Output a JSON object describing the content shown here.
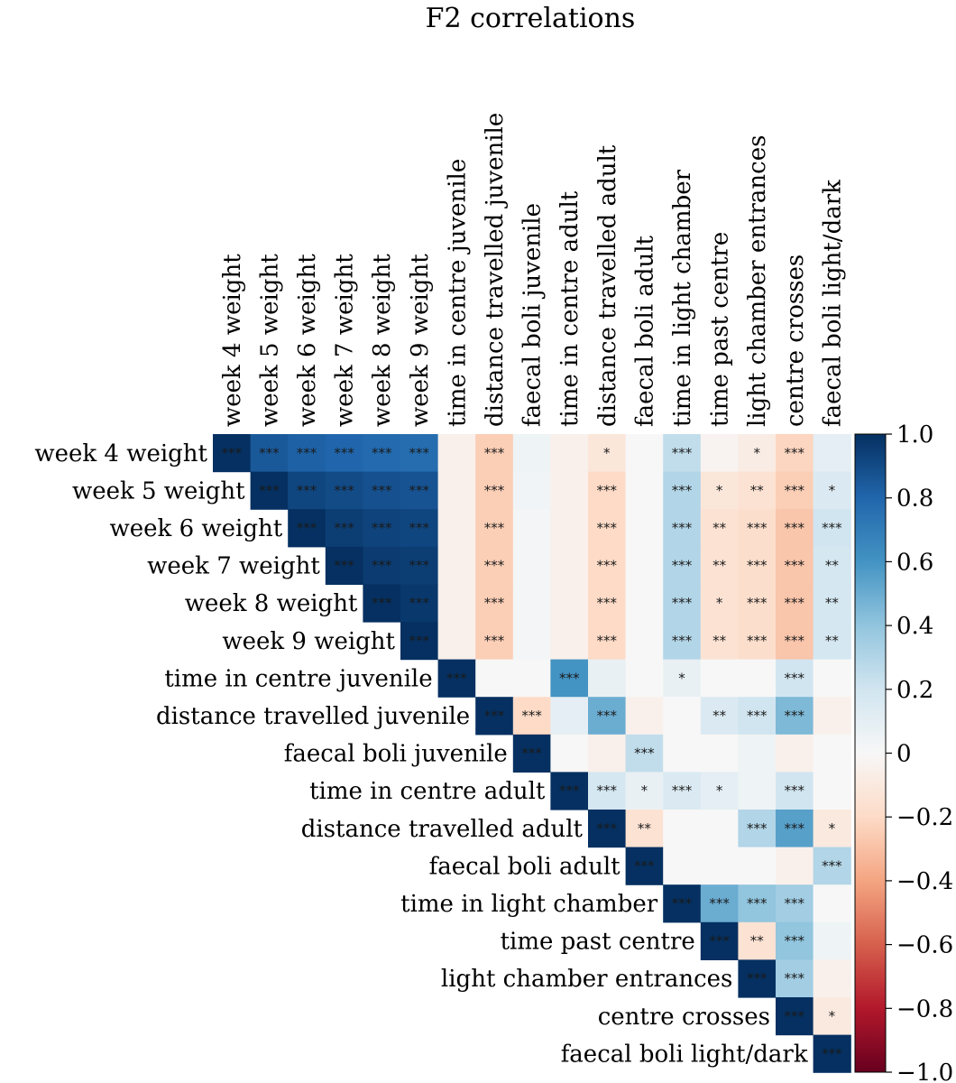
{
  "chart_data": {
    "type": "heatmap",
    "title": "F2 correlations",
    "variables": [
      "week 4 weight",
      "week 5 weight",
      "week 6 weight",
      "week 7 weight",
      "week 8 weight",
      "week 9 weight",
      "time in centre juvenile",
      "distance travelled juvenile",
      "faecal boli juvenile",
      "time in centre adult",
      "distance travelled adult",
      "faecal boli adult",
      "time in light chamber",
      "time past centre",
      "light chamber entrances",
      "centre crosses",
      "faecal boli light/dark"
    ],
    "layout": "upper-triangle",
    "values": [
      [
        1.0,
        0.85,
        0.82,
        0.8,
        0.78,
        0.77,
        -0.05,
        -0.25,
        0.05,
        -0.05,
        -0.12,
        0.0,
        0.25,
        -0.03,
        -0.08,
        -0.22,
        0.1
      ],
      [
        null,
        1.0,
        0.92,
        0.9,
        0.88,
        0.87,
        -0.05,
        -0.25,
        0.03,
        -0.05,
        -0.2,
        0.0,
        0.3,
        -0.12,
        -0.15,
        -0.25,
        0.15
      ],
      [
        null,
        null,
        1.0,
        0.95,
        0.93,
        0.92,
        -0.05,
        -0.25,
        0.02,
        -0.05,
        -0.2,
        0.0,
        0.3,
        -0.15,
        -0.18,
        -0.28,
        0.2
      ],
      [
        null,
        null,
        null,
        1.0,
        0.96,
        0.95,
        -0.05,
        -0.25,
        0.02,
        -0.05,
        -0.2,
        0.0,
        0.3,
        -0.15,
        -0.18,
        -0.28,
        0.18
      ],
      [
        null,
        null,
        null,
        null,
        1.0,
        0.97,
        -0.05,
        -0.25,
        0.02,
        -0.05,
        -0.2,
        0.0,
        0.3,
        -0.15,
        -0.18,
        -0.28,
        0.18
      ],
      [
        null,
        null,
        null,
        null,
        null,
        1.0,
        -0.05,
        -0.25,
        0.02,
        -0.05,
        -0.2,
        0.0,
        0.3,
        -0.15,
        -0.18,
        -0.28,
        0.18
      ],
      [
        null,
        null,
        null,
        null,
        null,
        null,
        1.0,
        0.0,
        0.0,
        0.6,
        0.08,
        0.0,
        0.08,
        0.0,
        0.0,
        0.2,
        0.0
      ],
      [
        null,
        null,
        null,
        null,
        null,
        null,
        null,
        1.0,
        -0.2,
        0.1,
        0.5,
        -0.05,
        0.0,
        0.15,
        0.2,
        0.45,
        -0.05
      ],
      [
        null,
        null,
        null,
        null,
        null,
        null,
        null,
        null,
        1.0,
        0.0,
        -0.05,
        0.25,
        0.0,
        0.0,
        0.05,
        -0.05,
        0.0
      ],
      [
        null,
        null,
        null,
        null,
        null,
        null,
        null,
        null,
        null,
        1.0,
        0.18,
        0.08,
        0.15,
        0.1,
        0.05,
        0.2,
        0.0
      ],
      [
        null,
        null,
        null,
        null,
        null,
        null,
        null,
        null,
        null,
        null,
        1.0,
        -0.15,
        0.0,
        0.0,
        0.3,
        0.55,
        -0.1
      ],
      [
        null,
        null,
        null,
        null,
        null,
        null,
        null,
        null,
        null,
        null,
        null,
        1.0,
        0.0,
        0.0,
        0.0,
        -0.05,
        0.3
      ],
      [
        null,
        null,
        null,
        null,
        null,
        null,
        null,
        null,
        null,
        null,
        null,
        null,
        1.0,
        0.5,
        0.4,
        0.35,
        0.0
      ],
      [
        null,
        null,
        null,
        null,
        null,
        null,
        null,
        null,
        null,
        null,
        null,
        null,
        null,
        1.0,
        -0.15,
        0.4,
        0.05
      ],
      [
        null,
        null,
        null,
        null,
        null,
        null,
        null,
        null,
        null,
        null,
        null,
        null,
        null,
        null,
        1.0,
        0.35,
        -0.05
      ],
      [
        null,
        null,
        null,
        null,
        null,
        null,
        null,
        null,
        null,
        null,
        null,
        null,
        null,
        null,
        null,
        1.0,
        -0.1
      ],
      [
        null,
        null,
        null,
        null,
        null,
        null,
        null,
        null,
        null,
        null,
        null,
        null,
        null,
        null,
        null,
        null,
        1.0
      ]
    ],
    "significance": [
      [
        "***",
        "***",
        "***",
        "***",
        "***",
        "***",
        "",
        "***",
        "",
        "",
        "*",
        "",
        "***",
        "",
        "*",
        "***",
        ""
      ],
      [
        "",
        "***",
        "***",
        "***",
        "***",
        "***",
        "",
        "***",
        "",
        "",
        "***",
        "",
        "***",
        "*",
        "**",
        "***",
        "*"
      ],
      [
        "",
        "",
        "***",
        "***",
        "***",
        "***",
        "",
        "***",
        "",
        "",
        "***",
        "",
        "***",
        "**",
        "***",
        "***",
        "***"
      ],
      [
        "",
        "",
        "",
        "***",
        "***",
        "***",
        "",
        "***",
        "",
        "",
        "***",
        "",
        "***",
        "**",
        "***",
        "***",
        "**"
      ],
      [
        "",
        "",
        "",
        "",
        "***",
        "***",
        "",
        "***",
        "",
        "",
        "***",
        "",
        "***",
        "*",
        "***",
        "***",
        "**"
      ],
      [
        "",
        "",
        "",
        "",
        "",
        "***",
        "",
        "***",
        "",
        "",
        "***",
        "",
        "***",
        "**",
        "***",
        "***",
        "**"
      ],
      [
        "",
        "",
        "",
        "",
        "",
        "",
        "***",
        "",
        "",
        "***",
        "",
        "",
        "*",
        "",
        "",
        "***",
        ""
      ],
      [
        "",
        "",
        "",
        "",
        "",
        "",
        "",
        "***",
        "***",
        "",
        "***",
        "",
        "",
        "**",
        "***",
        "***",
        ""
      ],
      [
        "",
        "",
        "",
        "",
        "",
        "",
        "",
        "",
        "***",
        "",
        "",
        "***",
        "",
        "",
        "",
        "",
        ""
      ],
      [
        "",
        "",
        "",
        "",
        "",
        "",
        "",
        "",
        "",
        "***",
        "***",
        "*",
        "***",
        "*",
        "",
        "***",
        ""
      ],
      [
        "",
        "",
        "",
        "",
        "",
        "",
        "",
        "",
        "",
        "",
        "***",
        "**",
        "",
        "",
        "***",
        "***",
        "*"
      ],
      [
        "",
        "",
        "",
        "",
        "",
        "",
        "",
        "",
        "",
        "",
        "",
        "***",
        "",
        "",
        "",
        "",
        "***"
      ],
      [
        "",
        "",
        "",
        "",
        "",
        "",
        "",
        "",
        "",
        "",
        "",
        "",
        "***",
        "***",
        "***",
        "***",
        ""
      ],
      [
        "",
        "",
        "",
        "",
        "",
        "",
        "",
        "",
        "",
        "",
        "",
        "",
        "",
        "***",
        "**",
        "***",
        ""
      ],
      [
        "",
        "",
        "",
        "",
        "",
        "",
        "",
        "",
        "",
        "",
        "",
        "",
        "",
        "",
        "***",
        "***",
        ""
      ],
      [
        "",
        "",
        "",
        "",
        "",
        "",
        "",
        "",
        "",
        "",
        "",
        "",
        "",
        "",
        "",
        "***",
        "*"
      ],
      [
        "",
        "",
        "",
        "",
        "",
        "",
        "",
        "",
        "",
        "",
        "",
        "",
        "",
        "",
        "",
        "",
        "***"
      ]
    ],
    "colorbar": {
      "range": [
        -1.0,
        1.0
      ],
      "ticks": [
        1.0,
        0.8,
        0.6,
        0.4,
        0.2,
        0,
        -0.2,
        -0.4,
        -0.6,
        -0.8,
        -1.0
      ],
      "tick_labels": [
        "1.0",
        "0.8",
        "0.6",
        "0.4",
        "0.2",
        "0",
        "−0.2",
        "−0.4",
        "−0.6",
        "−0.8",
        "−1.0"
      ],
      "colormap": "RdBu",
      "colormap_stops": [
        "#67001f",
        "#b2182b",
        "#d6604d",
        "#f4a582",
        "#fddbc7",
        "#f7f7f7",
        "#d1e5f0",
        "#92c5de",
        "#4393c3",
        "#2166ac",
        "#053061"
      ]
    }
  }
}
